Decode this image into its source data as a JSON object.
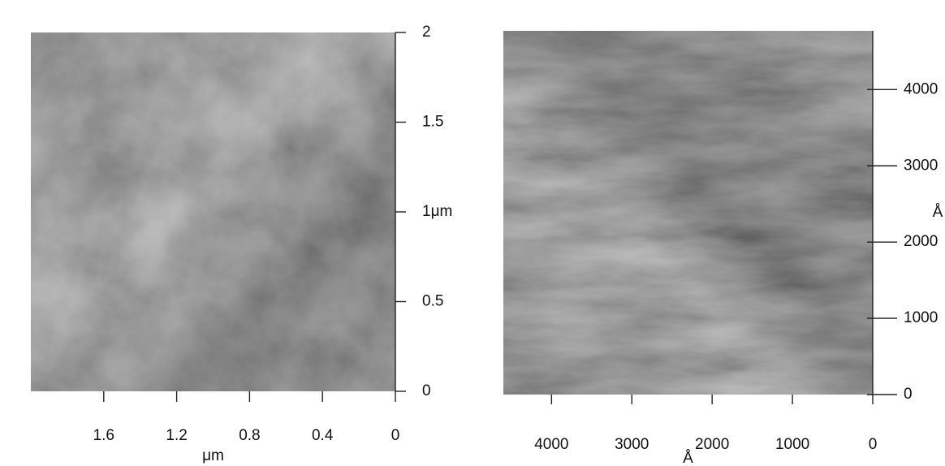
{
  "chart_data": [
    {
      "type": "image",
      "xlabel": "μm",
      "xlim": [
        2,
        0
      ],
      "xticks": [
        1.6,
        1.2,
        0.8,
        0.4,
        0
      ],
      "ylim": [
        0,
        2
      ],
      "yticks": [
        0,
        0.5,
        1.5,
        2,
        {
          "value": 1,
          "label": "1μm"
        }
      ]
    },
    {
      "type": "image",
      "xlabel": "Å",
      "ylabel": "Å",
      "xlim": [
        4600,
        0
      ],
      "xticks": [
        4000,
        3000,
        2000,
        1000,
        0
      ],
      "ylim": [
        0,
        4770
      ],
      "yticks": [
        0,
        1000,
        2000,
        3000,
        4000
      ]
    }
  ]
}
